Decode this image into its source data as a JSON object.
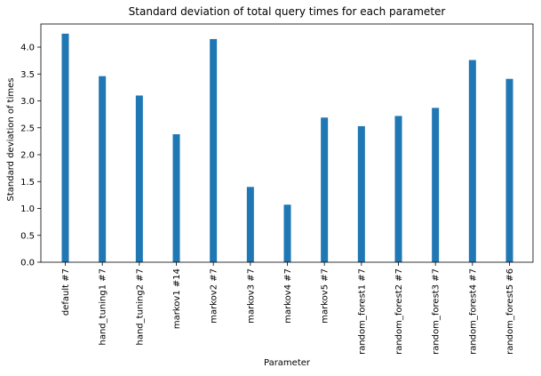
{
  "chart_data": {
    "type": "bar",
    "title": "Standard deviation of total query times for each parameter",
    "xlabel": "Parameter",
    "ylabel": "Standard deviation of times",
    "categories": [
      "default #7",
      "hand_tuning1 #7",
      "hand_tuning2 #7",
      "markov1 #14",
      "markov2 #7",
      "markov3 #7",
      "markov4 #7",
      "markov5 #7",
      "random_forest1 #7",
      "random_forest2 #7",
      "random_forest3 #7",
      "random_forest4 #7",
      "random_forest5 #6"
    ],
    "values": [
      4.25,
      3.46,
      3.1,
      2.38,
      4.15,
      1.4,
      1.07,
      2.69,
      2.53,
      2.72,
      2.87,
      3.76,
      3.41
    ],
    "ylim": [
      0,
      4.43
    ],
    "yticks": [
      0.0,
      0.5,
      1.0,
      1.5,
      2.0,
      2.5,
      3.0,
      3.5,
      4.0
    ],
    "ytick_labels": [
      "0.0",
      "0.5",
      "1.0",
      "1.5",
      "2.0",
      "2.5",
      "3.0",
      "3.5",
      "4.0"
    ],
    "grid": false,
    "legend": "none",
    "bar_color": "#1f77b4"
  }
}
